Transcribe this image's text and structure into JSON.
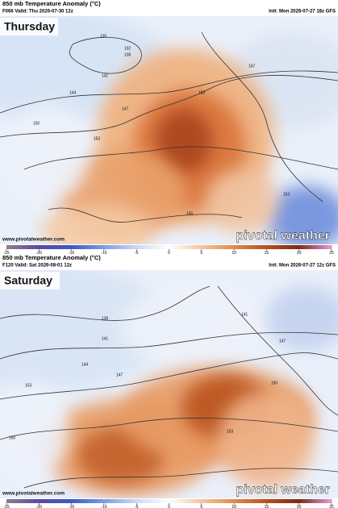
{
  "panels": [
    {
      "title": "850 mb Temperature Anomaly (°C)",
      "valid": "F066 Valid: Thu 2026-07-30 12z",
      "init": "Init: Mon 2026-07-27 18z GFS",
      "day": "Thursday",
      "website": "www.pivotalweather.com",
      "brand": "pivotal weather",
      "contour_labels": [
        135,
        132,
        138,
        141,
        144,
        147,
        150,
        153,
        150,
        147,
        153,
        156
      ],
      "colorbar_ticks": [
        -25,
        -20,
        -15,
        -10,
        -5,
        0,
        5,
        10,
        15,
        20,
        25
      ]
    },
    {
      "title": "850 mb Temperature Anomaly (°C)",
      "valid": "F120 Valid: Sat 2026-08-01 12z",
      "init": "Init: Mon 2026-07-27 12z GFS",
      "day": "Saturday",
      "website": "www.pivotalweather.com",
      "brand": "pivotal weather",
      "contour_labels": [
        138,
        141,
        144,
        147,
        150,
        153,
        141,
        147,
        150,
        153
      ],
      "colorbar_ticks": [
        -25,
        -20,
        -15,
        -10,
        -5,
        0,
        5,
        10,
        15,
        20,
        25
      ]
    }
  ]
}
